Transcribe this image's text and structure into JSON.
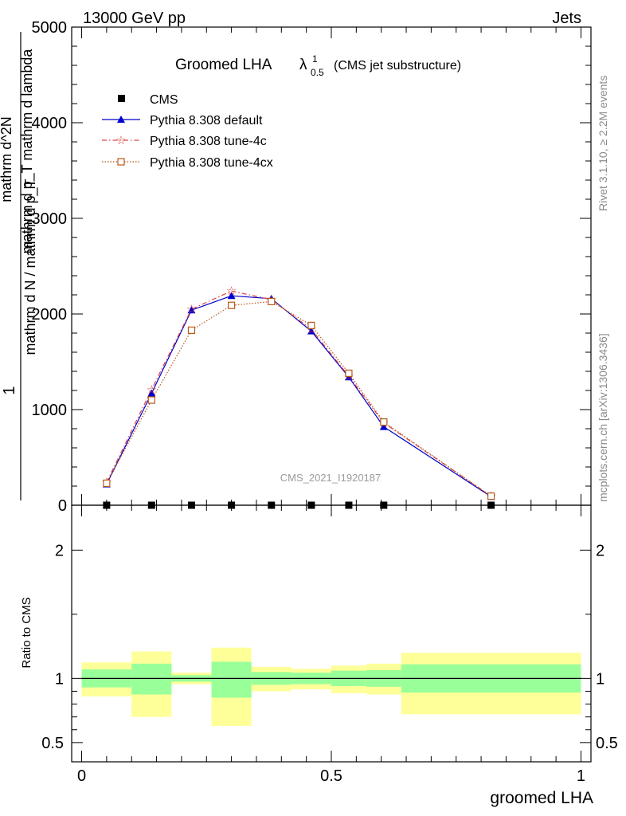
{
  "header": {
    "energy": "13000 GeV pp",
    "category": "Jets"
  },
  "title": {
    "main": "Groomed LHA",
    "lambda": "λ",
    "superscript": "1",
    "subscript": "0.5",
    "suffix": "(CMS jet substructure)"
  },
  "side_labels": {
    "rivet": "Rivet 3.1.10, ≥ 2.2M events",
    "mcplots": "mcplots.cern.ch [arXiv:1306.3436]"
  },
  "watermark": "CMS_2021_I1920187",
  "colors": {
    "cms": "#000000",
    "default": "#0000cc",
    "tune4c": "#e04040",
    "tune4cx": "#b85a1a",
    "band_inner": "#99ff99",
    "band_outer": "#ffff99"
  },
  "chart_data": [
    {
      "type": "line",
      "panel": "main",
      "ylabel_parts": [
        "1",
        "mathrm d N / mathrm d p_T",
        "mathrm d^2N",
        "mathrm d p_T mathrm d lambda"
      ],
      "ytick_labels": [
        "0",
        "1000",
        "2000",
        "3000",
        "4000",
        "5000"
      ],
      "ylim": [
        0,
        5000
      ],
      "xlim": [
        -0.02,
        1.02
      ],
      "x": [
        0.05,
        0.14,
        0.22,
        0.3,
        0.38,
        0.46,
        0.535,
        0.605,
        0.82
      ],
      "series": [
        {
          "name": "CMS",
          "marker": "square",
          "values": [
            0,
            0,
            0,
            0,
            0,
            0,
            0,
            0,
            0
          ]
        },
        {
          "name": "Pythia 8.308 default",
          "marker": "triangle",
          "values": [
            220,
            1170,
            2040,
            2190,
            2160,
            1820,
            1340,
            820,
            90
          ]
        },
        {
          "name": "Pythia 8.308 tune-4c",
          "marker": "star",
          "values": [
            240,
            1210,
            2050,
            2240,
            2150,
            1840,
            1350,
            860,
            95
          ]
        },
        {
          "name": "Pythia 8.308 tune-4cx",
          "marker": "open-square",
          "values": [
            230,
            1100,
            1830,
            2090,
            2130,
            1880,
            1380,
            870,
            95
          ]
        }
      ],
      "legend_position": "top-left"
    },
    {
      "type": "area",
      "panel": "ratio",
      "ylabel": "Ratio to CMS",
      "xlabel": "groomed LHA",
      "ytick_labels": [
        "0.5",
        "1",
        "2"
      ],
      "yticks": [
        0.5,
        1,
        2
      ],
      "ylim": [
        0.35,
        2.35
      ],
      "xtick_labels": [
        "0",
        "0.5",
        "1"
      ],
      "xticks": [
        0,
        0.5,
        1
      ],
      "xlim": [
        -0.02,
        1.02
      ],
      "bins": [
        {
          "x0": 0.0,
          "x1": 0.1,
          "inner": [
            0.93,
            1.07
          ],
          "outer": [
            0.86,
            1.125
          ]
        },
        {
          "x0": 0.1,
          "x1": 0.18,
          "inner": [
            0.875,
            1.115
          ],
          "outer": [
            0.7,
            1.21
          ]
        },
        {
          "x0": 0.18,
          "x1": 0.26,
          "inner": [
            0.975,
            1.025
          ],
          "outer": [
            0.955,
            1.045
          ]
        },
        {
          "x0": 0.26,
          "x1": 0.34,
          "inner": [
            0.85,
            1.13
          ],
          "outer": [
            0.63,
            1.24
          ]
        },
        {
          "x0": 0.34,
          "x1": 0.42,
          "inner": [
            0.95,
            1.05
          ],
          "outer": [
            0.9,
            1.09
          ]
        },
        {
          "x0": 0.42,
          "x1": 0.5,
          "inner": [
            0.955,
            1.045
          ],
          "outer": [
            0.915,
            1.075
          ]
        },
        {
          "x0": 0.5,
          "x1": 0.57,
          "inner": [
            0.94,
            1.06
          ],
          "outer": [
            0.885,
            1.1
          ]
        },
        {
          "x0": 0.57,
          "x1": 0.64,
          "inner": [
            0.935,
            1.065
          ],
          "outer": [
            0.875,
            1.115
          ]
        },
        {
          "x0": 0.64,
          "x1": 1.0,
          "inner": [
            0.89,
            1.11
          ],
          "outer": [
            0.72,
            1.2
          ]
        }
      ],
      "reference": 1
    }
  ]
}
